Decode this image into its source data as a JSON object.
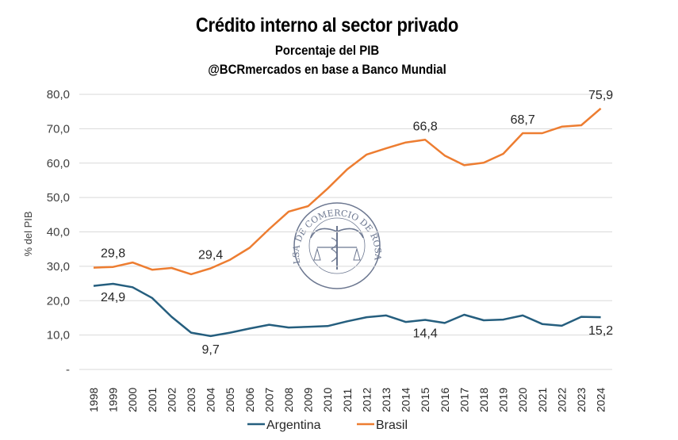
{
  "chart_data": {
    "type": "line",
    "title": "Crédito interno al sector privado",
    "subtitle": "Porcentaje del PIB",
    "source": "@BCRmercados en base a Banco Mundial",
    "xlabel": "",
    "ylabel": "% del PIB",
    "ylim": [
      0,
      80
    ],
    "yticks": [
      0,
      10,
      20,
      30,
      40,
      50,
      60,
      70,
      80
    ],
    "ytick_labels": [
      "-",
      "10,0",
      "20,0",
      "30,0",
      "40,0",
      "50,0",
      "60,0",
      "70,0",
      "80,0"
    ],
    "grid": true,
    "legend_position": "bottom",
    "x": [
      "1998",
      "1999",
      "2000",
      "2001",
      "2002",
      "2003",
      "2004",
      "2005",
      "2006",
      "2007",
      "2008",
      "2009",
      "2010",
      "2011",
      "2012",
      "2013",
      "2014",
      "2015",
      "2016",
      "2017",
      "2018",
      "2019",
      "2020",
      "2021",
      "2022",
      "2023",
      "2024"
    ],
    "series": [
      {
        "name": "Argentina",
        "color": "#255E7E",
        "values": [
          24.3,
          24.9,
          23.9,
          20.8,
          15.3,
          10.7,
          9.7,
          10.7,
          11.9,
          13.0,
          12.2,
          12.4,
          12.6,
          14.0,
          15.2,
          15.7,
          13.8,
          14.4,
          13.5,
          15.9,
          14.3,
          14.5,
          15.7,
          13.2,
          12.7,
          15.3,
          15.2
        ],
        "labels": [
          {
            "x": "1999",
            "text": "24,9",
            "position": "below"
          },
          {
            "x": "2004",
            "text": "9,7",
            "position": "below"
          },
          {
            "x": "2015",
            "text": "14,4",
            "position": "below"
          },
          {
            "x": "2024",
            "text": "15,2",
            "position": "below"
          }
        ]
      },
      {
        "name": "Brasil",
        "color": "#ED7D31",
        "values": [
          29.6,
          29.8,
          31.1,
          29.0,
          29.5,
          27.7,
          29.4,
          31.9,
          35.4,
          40.8,
          45.9,
          47.5,
          52.6,
          58.2,
          62.5,
          64.3,
          66.0,
          66.8,
          62.2,
          59.4,
          60.1,
          62.7,
          68.7,
          68.7,
          70.6,
          71.0,
          75.9
        ],
        "labels": [
          {
            "x": "1999",
            "text": "29,8",
            "position": "above"
          },
          {
            "x": "2004",
            "text": "29,4",
            "position": "above"
          },
          {
            "x": "2015",
            "text": "66,8",
            "position": "above"
          },
          {
            "x": "2020",
            "text": "68,7",
            "position": "above"
          },
          {
            "x": "2024",
            "text": "75,9",
            "position": "above"
          }
        ]
      }
    ],
    "watermark": "BOLSA DE COMERCIO DE ROSARIO"
  }
}
